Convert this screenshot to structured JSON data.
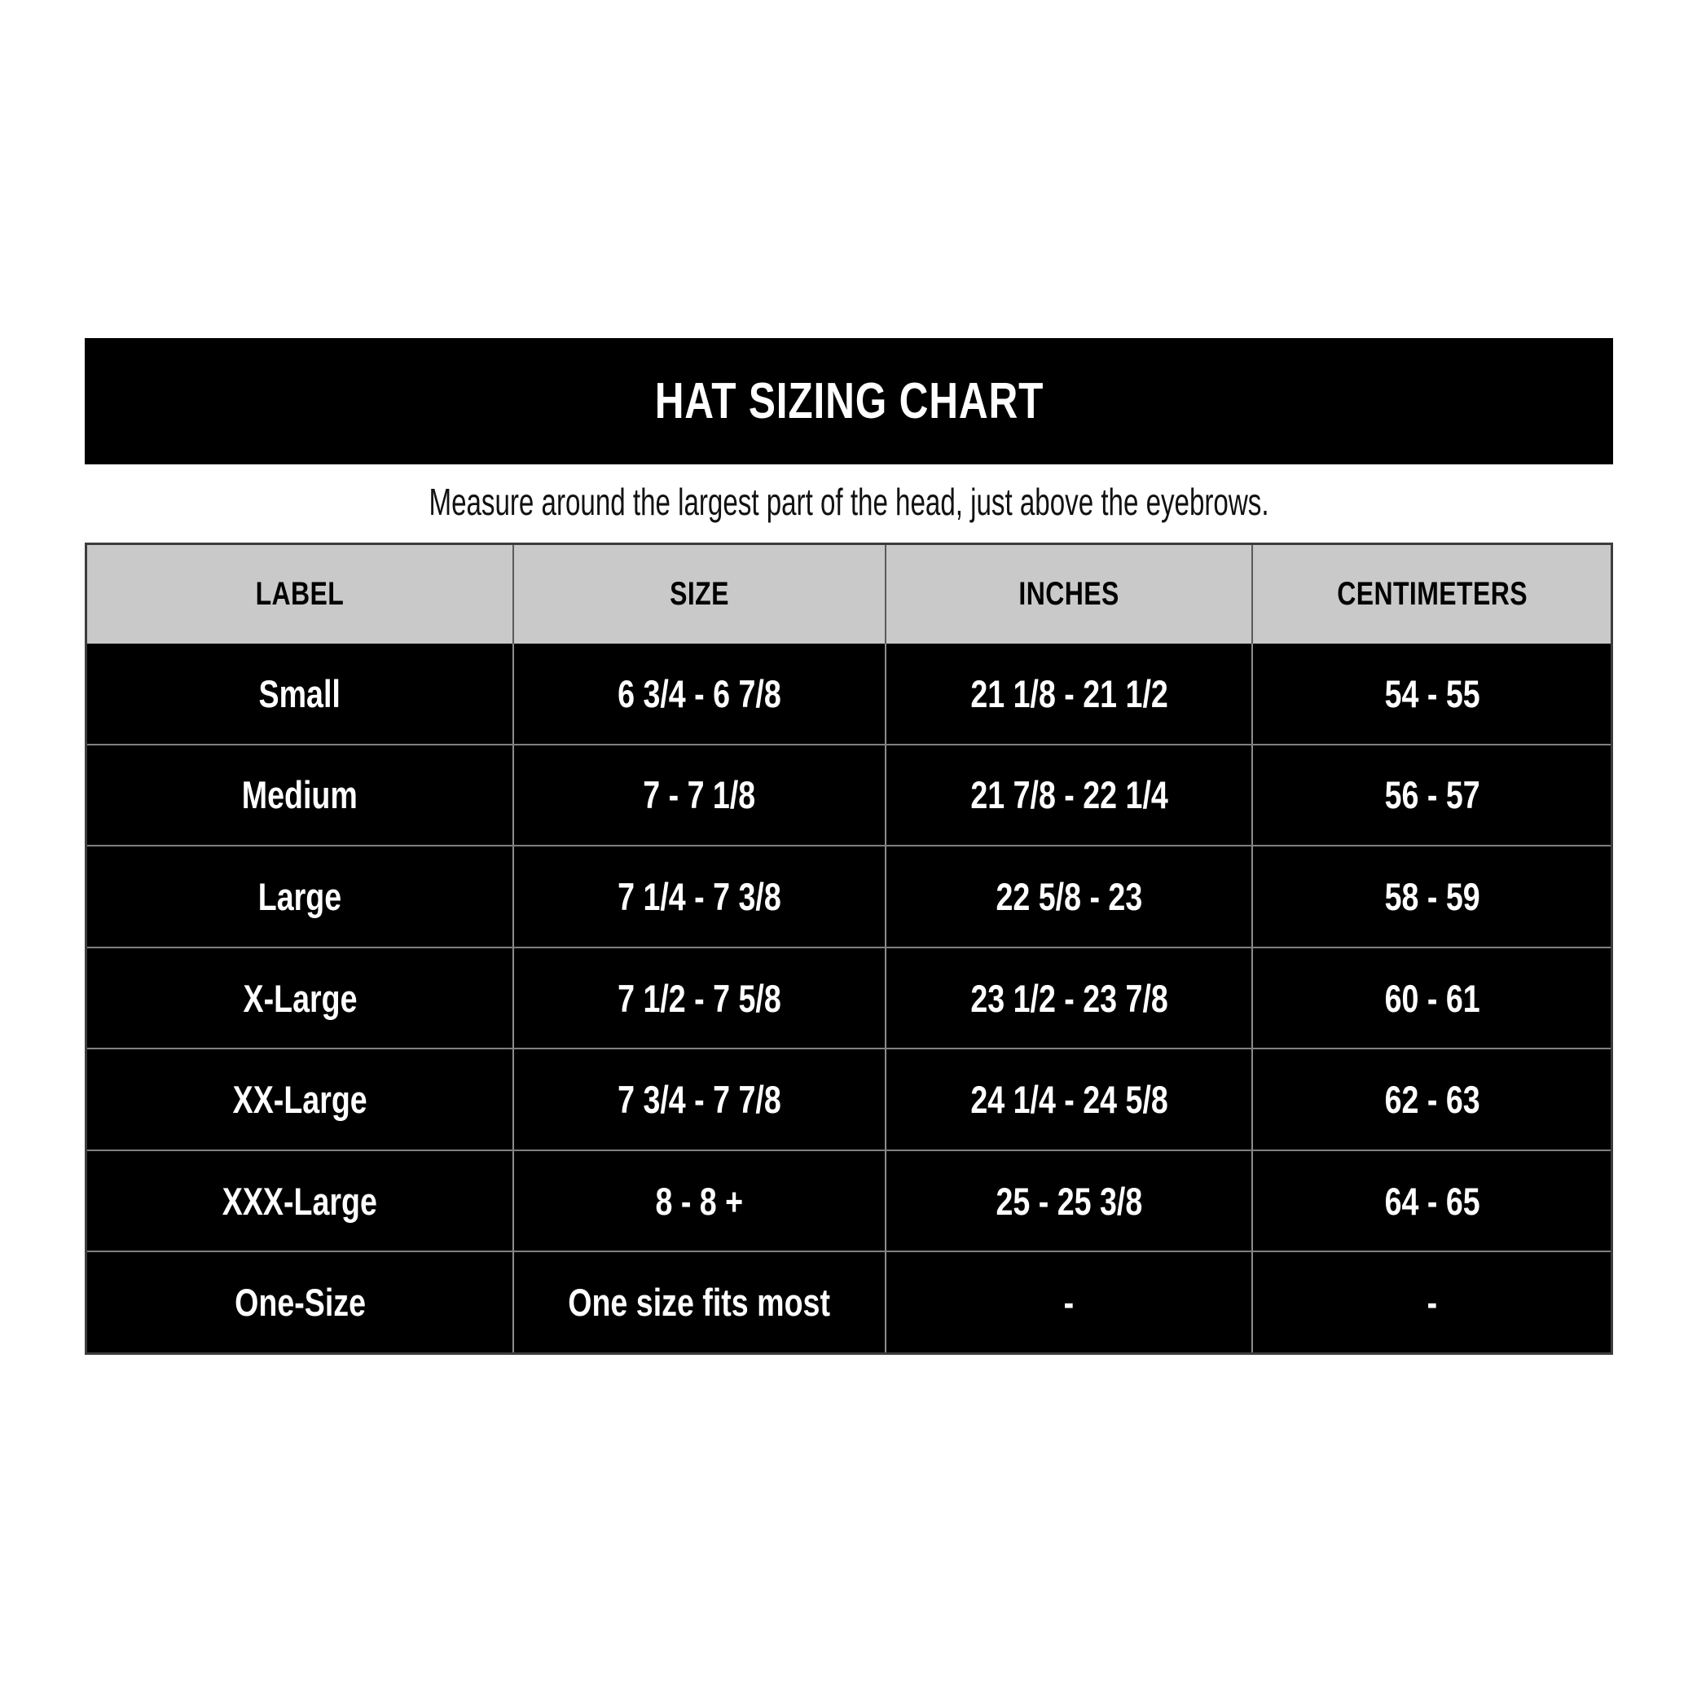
{
  "header": {
    "title": "HAT SIZING CHART",
    "subtitle": "Measure around the largest part of the head, just above the eyebrows."
  },
  "table": {
    "columns": [
      "LABEL",
      "SIZE",
      "INCHES",
      "CENTIMETERS"
    ],
    "rows": [
      [
        "Small",
        "6 3/4 - 6 7/8",
        "21 1/8 - 21 1/2",
        "54 - 55"
      ],
      [
        "Medium",
        "7 - 7 1/8",
        "21 7/8 - 22 1/4",
        "56 - 57"
      ],
      [
        "Large",
        "7 1/4 - 7 3/8",
        "22 5/8 - 23",
        "58 - 59"
      ],
      [
        "X-Large",
        "7 1/2 - 7 5/8",
        "23 1/2 - 23 7/8",
        "60 - 61"
      ],
      [
        "XX-Large",
        "7 3/4 - 7 7/8",
        "24 1/4 - 24 5/8",
        "62 - 63"
      ],
      [
        "XXX-Large",
        "8 - 8 +",
        "25 - 25 3/8",
        "64 - 65"
      ],
      [
        "One-Size",
        "One size fits most",
        "-",
        "-"
      ]
    ]
  },
  "colors": {
    "page_background": "#ffffff",
    "title_bar_bg": "#000000",
    "title_text": "#ffffff",
    "subtitle_text": "#111111",
    "header_row_bg": "#c9c9c9",
    "header_text": "#000000",
    "data_row_bg": "#000000",
    "data_text": "#ffffff",
    "row_separator": "#808080",
    "column_separator": "#8c8c8c",
    "outer_border": "#3d3d3d"
  },
  "chart_data": {
    "type": "table",
    "title": "HAT SIZING CHART",
    "subtitle": "Measure around the largest part of the head, just above the eyebrows.",
    "columns": [
      "LABEL",
      "SIZE",
      "INCHES",
      "CENTIMETERS"
    ],
    "rows": [
      [
        "Small",
        "6 3/4 - 6 7/8",
        "21 1/8 - 21 1/2",
        "54 - 55"
      ],
      [
        "Medium",
        "7 - 7 1/8",
        "21 7/8 - 22 1/4",
        "56 - 57"
      ],
      [
        "Large",
        "7 1/4 - 7 3/8",
        "22 5/8 - 23",
        "58 - 59"
      ],
      [
        "X-Large",
        "7 1/2 - 7 5/8",
        "23 1/2 - 23 7/8",
        "60 - 61"
      ],
      [
        "XX-Large",
        "7 3/4 - 7 7/8",
        "24 1/4 - 24 5/8",
        "62 - 63"
      ],
      [
        "XXX-Large",
        "8 - 8 +",
        "25 - 25 3/8",
        "64 - 65"
      ],
      [
        "One-Size",
        "One size fits most",
        "-",
        "-"
      ]
    ],
    "layout": {
      "header_fill": "#c9c9c9",
      "body_fill": "#000000",
      "grid": true,
      "text_align": "center"
    }
  }
}
